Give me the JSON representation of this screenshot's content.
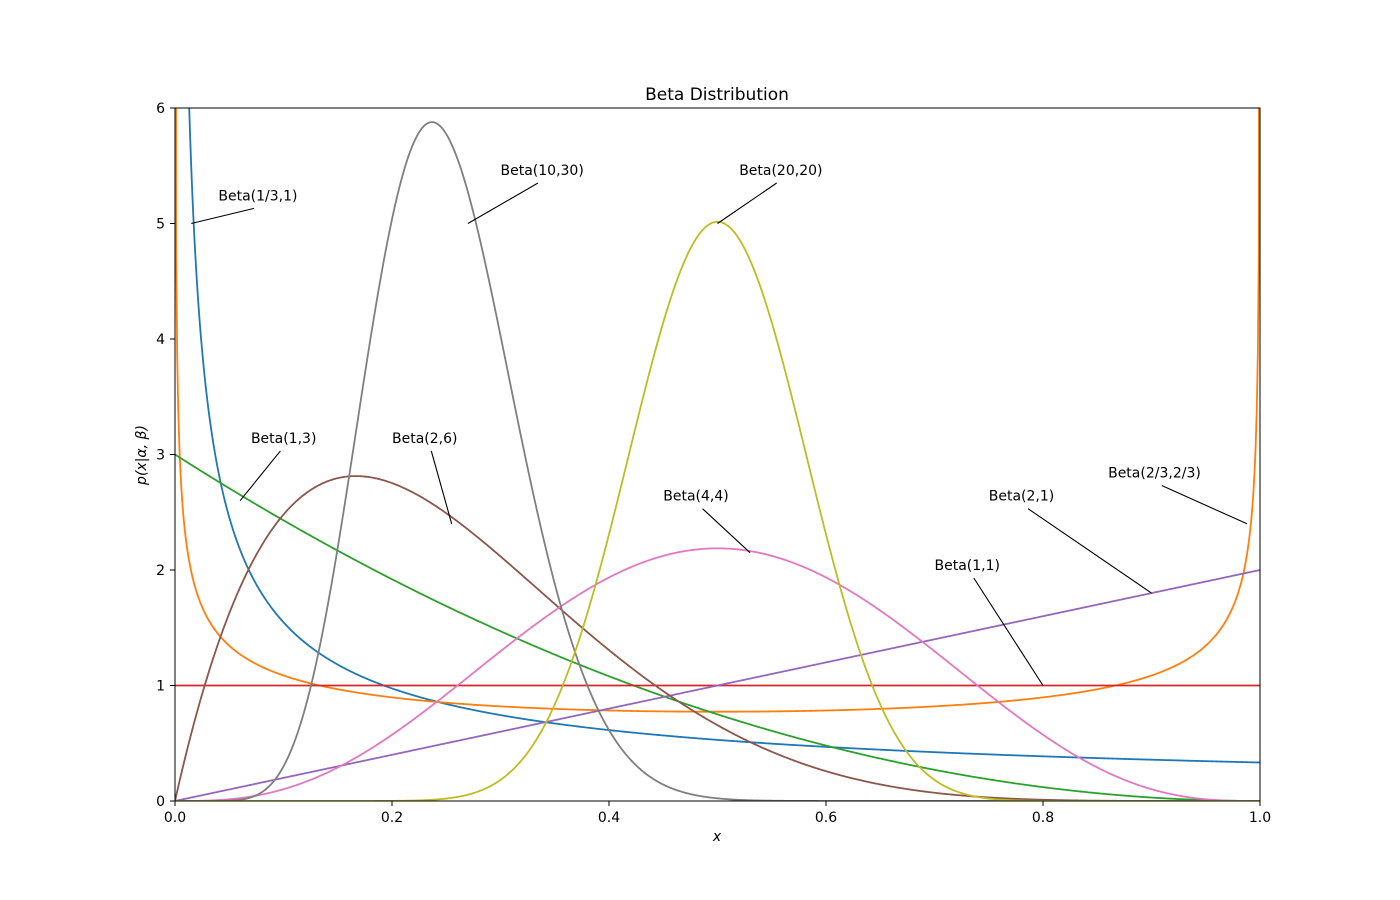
{
  "chart_data": {
    "type": "line",
    "title": "Beta Distribution",
    "xlabel": "x",
    "ylabel": "p(x|α, β)",
    "xlim": [
      0.0,
      1.0
    ],
    "ylim": [
      0,
      6
    ],
    "x_ticks": [
      "0.0",
      "0.2",
      "0.4",
      "0.6",
      "0.8",
      "1.0"
    ],
    "y_ticks": [
      "0",
      "1",
      "2",
      "3",
      "4",
      "5",
      "6"
    ],
    "grid": false,
    "legend": "none",
    "series": [
      {
        "name": "Beta(1/3,1)",
        "alpha": 0.3333333,
        "beta": 1,
        "color": "#1f77b4"
      },
      {
        "name": "Beta(2/3,2/3)",
        "alpha": 0.6666667,
        "beta": 0.6666667,
        "color": "#ff7f0e"
      },
      {
        "name": "Beta(1,3)",
        "alpha": 1,
        "beta": 3,
        "color": "#2ca02c"
      },
      {
        "name": "Beta(1,1)",
        "alpha": 1,
        "beta": 1,
        "color": "#d62728"
      },
      {
        "name": "Beta(2,1)",
        "alpha": 2,
        "beta": 1,
        "color": "#9467bd"
      },
      {
        "name": "Beta(2,6)",
        "alpha": 2,
        "beta": 6,
        "color": "#8c564b"
      },
      {
        "name": "Beta(4,4)",
        "alpha": 4,
        "beta": 4,
        "color": "#e377c2"
      },
      {
        "name": "Beta(10,30)",
        "alpha": 10,
        "beta": 30,
        "color": "#7f7f7f"
      },
      {
        "name": "Beta(20,20)",
        "alpha": 20,
        "beta": 20,
        "color": "#bcbd22"
      }
    ],
    "annotations": [
      {
        "text": "Beta(1/3,1)",
        "point": [
          0.015,
          5.0
        ],
        "text_pos": [
          0.04,
          5.2
        ]
      },
      {
        "text": "Beta(10,30)",
        "point": [
          0.27,
          5.0
        ],
        "text_pos": [
          0.3,
          5.42
        ]
      },
      {
        "text": "Beta(20,20)",
        "point": [
          0.5,
          5.0
        ],
        "text_pos": [
          0.52,
          5.42
        ]
      },
      {
        "text": "Beta(1,3)",
        "point": [
          0.06,
          2.6
        ],
        "text_pos": [
          0.07,
          3.1
        ]
      },
      {
        "text": "Beta(2,6)",
        "point": [
          0.255,
          2.4
        ],
        "text_pos": [
          0.2,
          3.1
        ]
      },
      {
        "text": "Beta(4,4)",
        "point": [
          0.53,
          2.15
        ],
        "text_pos": [
          0.45,
          2.6
        ]
      },
      {
        "text": "Beta(1,1)",
        "point": [
          0.8,
          1.0
        ],
        "text_pos": [
          0.7,
          2.0
        ]
      },
      {
        "text": "Beta(2,1)",
        "point": [
          0.9,
          1.8
        ],
        "text_pos": [
          0.75,
          2.6
        ]
      },
      {
        "text": "Beta(2/3,2/3)",
        "point": [
          0.988,
          2.4
        ],
        "text_pos": [
          0.86,
          2.8
        ]
      }
    ]
  }
}
